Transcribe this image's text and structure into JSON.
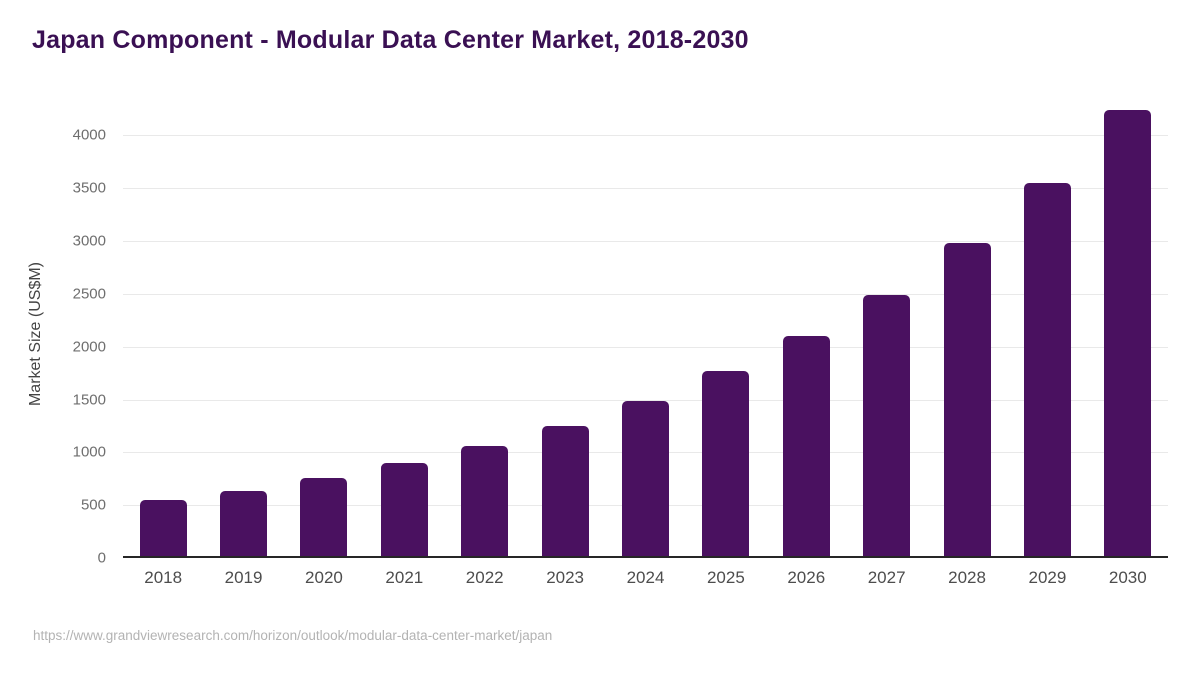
{
  "page": {
    "title": "Japan Component - Modular Data Center Market, 2018-2030",
    "source_url": "https://www.grandviewresearch.com/horizon/outlook/modular-data-center-market/japan"
  },
  "colors": {
    "background": "#ffffff",
    "bar": "#4a1160",
    "title": "#3a1053",
    "axis_line": "#262626",
    "gridline": "#e9e9e9",
    "y_tick_label": "#6e6e6e",
    "x_tick_label": "#4d4d4d",
    "axis_title": "#444444",
    "source": "#b3b3b3"
  },
  "chart_data": {
    "type": "bar",
    "title": "Japan Component - Modular Data Center Market, 2018-2030",
    "xlabel": "",
    "ylabel": "Market Size (US$M)",
    "categories": [
      "2018",
      "2019",
      "2020",
      "2021",
      "2022",
      "2023",
      "2024",
      "2025",
      "2026",
      "2027",
      "2028",
      "2029",
      "2030"
    ],
    "values": [
      530,
      620,
      740,
      880,
      1045,
      1230,
      1465,
      1750,
      2085,
      2475,
      2965,
      3535,
      4220
    ],
    "yticks": [
      0,
      500,
      1000,
      1500,
      2000,
      2500,
      3000,
      3500,
      4000
    ],
    "ylim": [
      0,
      4240
    ],
    "grid": "horizontal",
    "legend": "none",
    "bar_color": "#4a1160"
  }
}
